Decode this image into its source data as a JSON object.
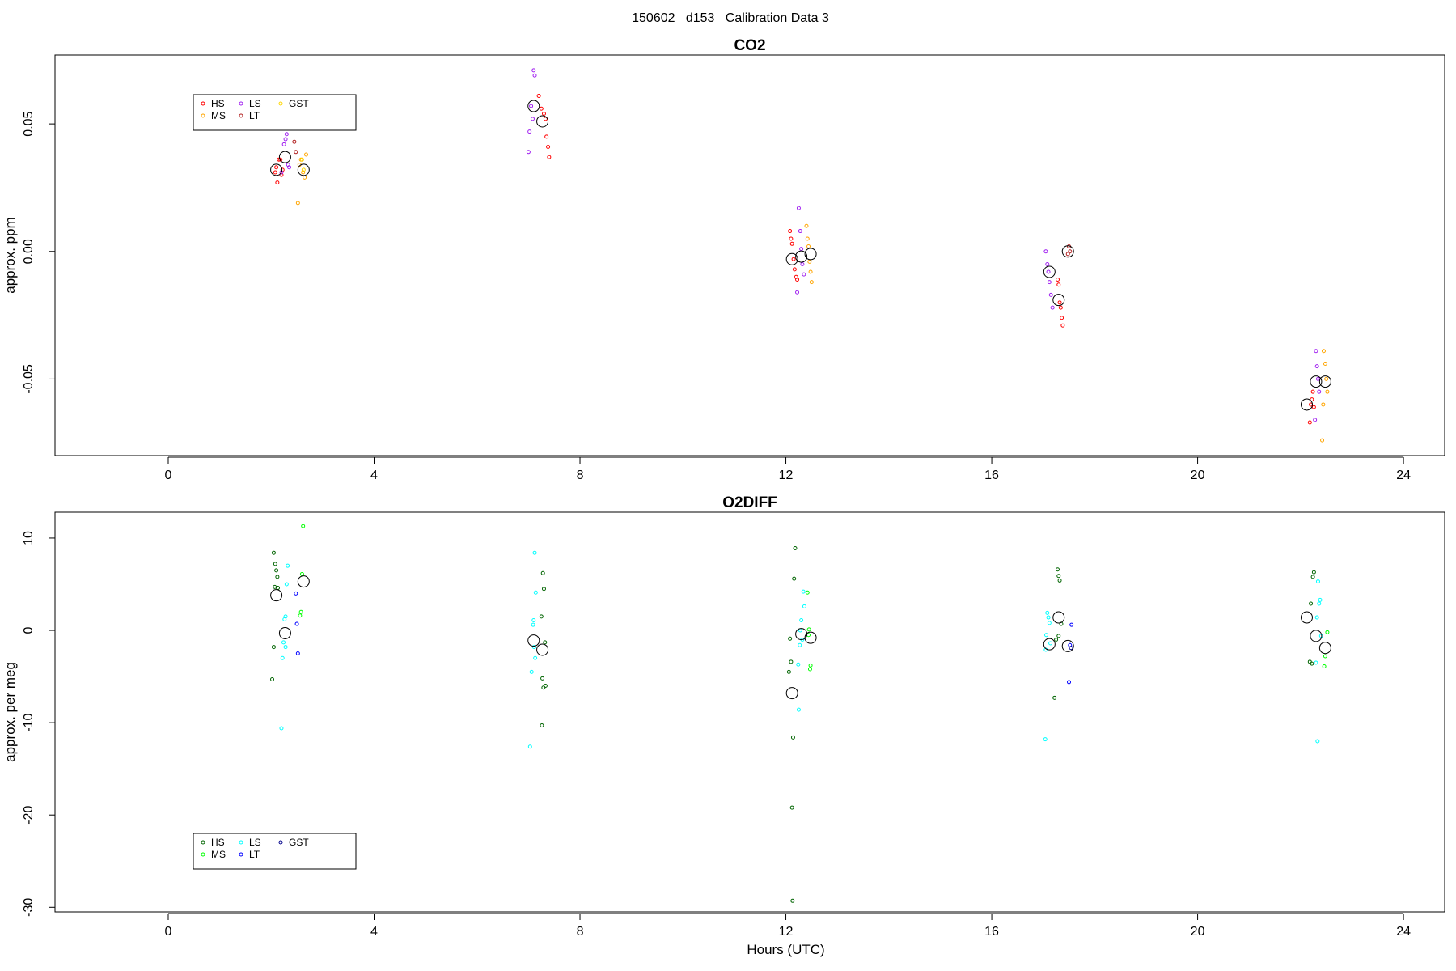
{
  "page_title": "150602   d153   Calibration Data 3",
  "chart_data": [
    {
      "type": "scatter",
      "title": "CO2",
      "xlabel": "",
      "ylabel": "approx. ppm",
      "xlim": [
        -2.2,
        24.8
      ],
      "ylim": [
        -0.08,
        0.077
      ],
      "xticks": [
        0,
        4,
        8,
        12,
        16,
        20,
        24
      ],
      "xtick_labels": [
        "0",
        "4",
        "8",
        "12",
        "16",
        "20",
        "24"
      ],
      "yticks": [
        -0.05,
        0.0,
        0.05
      ],
      "ytick_labels": [
        "-0.05",
        "0.00",
        "0.05"
      ],
      "grid": false,
      "legend": {
        "placement": "top-left",
        "entries": [
          {
            "label": "HS",
            "color": "#ff0000"
          },
          {
            "label": "MS",
            "color": "#ffa500"
          },
          {
            "label": "LS",
            "color": "#a020f0"
          },
          {
            "label": "LT",
            "color": "#b22222"
          },
          {
            "label": "GST",
            "color": "#ffd700"
          }
        ]
      },
      "series": [
        {
          "name": "HS",
          "color": "#ff0000",
          "points": [
            [
              2.08,
              0.031
            ],
            [
              2.1,
              0.033
            ],
            [
              2.12,
              0.027
            ],
            [
              2.15,
              0.036
            ],
            [
              2.18,
              0.036
            ],
            [
              2.2,
              0.03
            ],
            [
              2.22,
              0.032
            ],
            [
              7.2,
              0.061
            ],
            [
              7.25,
              0.056
            ],
            [
              7.3,
              0.054
            ],
            [
              7.33,
              0.052
            ],
            [
              7.35,
              0.045
            ],
            [
              7.38,
              0.041
            ],
            [
              7.4,
              0.037
            ],
            [
              12.08,
              0.008
            ],
            [
              12.1,
              0.005
            ],
            [
              12.12,
              0.003
            ],
            [
              12.15,
              -0.003
            ],
            [
              12.17,
              -0.007
            ],
            [
              12.2,
              -0.01
            ],
            [
              12.22,
              -0.011
            ],
            [
              17.28,
              -0.011
            ],
            [
              17.3,
              -0.013
            ],
            [
              17.32,
              -0.02
            ],
            [
              17.34,
              -0.022
            ],
            [
              17.36,
              -0.026
            ],
            [
              17.38,
              -0.029
            ],
            [
              22.18,
              -0.067
            ],
            [
              22.2,
              -0.06
            ],
            [
              22.22,
              -0.058
            ],
            [
              22.24,
              -0.055
            ],
            [
              22.26,
              -0.061
            ]
          ]
        },
        {
          "name": "MS",
          "color": "#ffa500",
          "points": [
            [
              2.55,
              0.034
            ],
            [
              2.58,
              0.036
            ],
            [
              2.62,
              0.031
            ],
            [
              2.65,
              0.029
            ],
            [
              2.68,
              0.038
            ],
            [
              2.52,
              0.019
            ],
            [
              12.4,
              0.01
            ],
            [
              12.42,
              0.005
            ],
            [
              12.44,
              0.002
            ],
            [
              12.46,
              -0.004
            ],
            [
              12.48,
              -0.008
            ],
            [
              12.5,
              -0.012
            ],
            [
              22.45,
              -0.039
            ],
            [
              22.48,
              -0.044
            ],
            [
              22.5,
              -0.05
            ],
            [
              22.52,
              -0.055
            ],
            [
              22.44,
              -0.06
            ],
            [
              22.42,
              -0.074
            ]
          ]
        },
        {
          "name": "LS",
          "color": "#a020f0",
          "points": [
            [
              2.25,
              0.042
            ],
            [
              2.28,
              0.044
            ],
            [
              2.3,
              0.046
            ],
            [
              2.33,
              0.034
            ],
            [
              2.35,
              0.033
            ],
            [
              2.2,
              0.031
            ],
            [
              7.1,
              0.071
            ],
            [
              7.12,
              0.069
            ],
            [
              7.05,
              0.057
            ],
            [
              7.08,
              0.052
            ],
            [
              7.02,
              0.047
            ],
            [
              7.0,
              0.039
            ],
            [
              12.25,
              0.017
            ],
            [
              12.28,
              0.008
            ],
            [
              12.3,
              0.001
            ],
            [
              12.32,
              -0.005
            ],
            [
              12.35,
              -0.009
            ],
            [
              12.22,
              -0.016
            ],
            [
              17.05,
              0.0
            ],
            [
              17.08,
              -0.005
            ],
            [
              17.1,
              -0.008
            ],
            [
              17.12,
              -0.012
            ],
            [
              17.15,
              -0.017
            ],
            [
              17.18,
              -0.022
            ],
            [
              22.3,
              -0.039
            ],
            [
              22.32,
              -0.045
            ],
            [
              22.34,
              -0.05
            ],
            [
              22.36,
              -0.055
            ],
            [
              22.28,
              -0.066
            ]
          ]
        },
        {
          "name": "LT",
          "color": "#b22222",
          "points": [
            [
              2.45,
              0.043
            ],
            [
              2.48,
              0.039
            ],
            [
              17.48,
              -0.001
            ],
            [
              17.52,
              0.0
            ],
            [
              17.5,
              0.002
            ]
          ]
        },
        {
          "name": "GST",
          "color": "#ffd700",
          "points": [
            [
              2.6,
              0.036
            ],
            [
              2.63,
              0.032
            ]
          ]
        }
      ],
      "means": [
        [
          2.1,
          0.032
        ],
        [
          2.27,
          0.037
        ],
        [
          2.63,
          0.032
        ],
        [
          7.1,
          0.057
        ],
        [
          7.27,
          0.051
        ],
        [
          12.12,
          -0.003
        ],
        [
          12.3,
          -0.002
        ],
        [
          12.48,
          -0.001
        ],
        [
          17.12,
          -0.008
        ],
        [
          17.3,
          -0.019
        ],
        [
          17.48,
          0.0
        ],
        [
          22.12,
          -0.06
        ],
        [
          22.3,
          -0.051
        ],
        [
          22.48,
          -0.051
        ]
      ]
    },
    {
      "type": "scatter",
      "title": "O2DIFF",
      "xlabel": "Hours (UTC)",
      "ylabel": "approx. per meg",
      "xlim": [
        -2.2,
        24.8
      ],
      "ylim": [
        -30.5,
        12.8
      ],
      "xticks": [
        0,
        4,
        8,
        12,
        16,
        20,
        24
      ],
      "xtick_labels": [
        "0",
        "4",
        "8",
        "12",
        "16",
        "20",
        "24"
      ],
      "yticks": [
        -30,
        -20,
        -10,
        0,
        10
      ],
      "ytick_labels": [
        "-30",
        "-20",
        "-10",
        "0",
        "10"
      ],
      "grid": false,
      "legend": {
        "placement": "bottom-left",
        "entries": [
          {
            "label": "HS",
            "color": "#006400"
          },
          {
            "label": "MS",
            "color": "#00ff00"
          },
          {
            "label": "LS",
            "color": "#00ffff"
          },
          {
            "label": "LT",
            "color": "#0000ff"
          },
          {
            "label": "GST",
            "color": "#00008b"
          }
        ]
      },
      "series": [
        {
          "name": "HS",
          "color": "#006400",
          "points": [
            [
              2.05,
              8.4
            ],
            [
              2.08,
              7.2
            ],
            [
              2.1,
              6.5
            ],
            [
              2.12,
              5.8
            ],
            [
              2.07,
              4.7
            ],
            [
              2.13,
              4.6
            ],
            [
              2.05,
              -1.8
            ],
            [
              2.02,
              -5.3
            ],
            [
              7.28,
              6.2
            ],
            [
              7.3,
              4.5
            ],
            [
              7.25,
              1.5
            ],
            [
              7.32,
              -1.3
            ],
            [
              7.27,
              -5.2
            ],
            [
              7.29,
              -6.2
            ],
            [
              7.33,
              -6.0
            ],
            [
              7.26,
              -10.3
            ],
            [
              12.18,
              8.9
            ],
            [
              12.16,
              5.6
            ],
            [
              12.08,
              -0.9
            ],
            [
              12.1,
              -3.4
            ],
            [
              12.06,
              -4.5
            ],
            [
              12.14,
              -11.6
            ],
            [
              12.12,
              -19.2
            ],
            [
              12.13,
              -29.3
            ],
            [
              17.28,
              6.6
            ],
            [
              17.3,
              5.9
            ],
            [
              17.32,
              5.4
            ],
            [
              17.35,
              0.7
            ],
            [
              17.3,
              -0.6
            ],
            [
              17.25,
              -1.0
            ],
            [
              17.22,
              -7.3
            ],
            [
              22.26,
              6.3
            ],
            [
              22.24,
              5.8
            ],
            [
              22.2,
              2.9
            ],
            [
              22.18,
              -3.4
            ],
            [
              22.22,
              -3.6
            ]
          ]
        },
        {
          "name": "MS",
          "color": "#00ff00",
          "points": [
            [
              2.62,
              11.3
            ],
            [
              2.6,
              6.1
            ],
            [
              2.58,
              2.0
            ],
            [
              2.56,
              1.6
            ],
            [
              12.42,
              4.1
            ],
            [
              12.45,
              0.1
            ],
            [
              12.44,
              -0.5
            ],
            [
              12.48,
              -3.8
            ],
            [
              12.47,
              -4.2
            ],
            [
              22.52,
              -0.2
            ],
            [
              22.48,
              -2.8
            ],
            [
              22.46,
              -3.9
            ]
          ]
        },
        {
          "name": "LS",
          "color": "#00ffff",
          "points": [
            [
              2.32,
              7.0
            ],
            [
              2.3,
              5.0
            ],
            [
              2.28,
              1.5
            ],
            [
              2.26,
              1.2
            ],
            [
              2.24,
              -1.3
            ],
            [
              2.28,
              -1.8
            ],
            [
              2.22,
              -3.0
            ],
            [
              2.2,
              -10.6
            ],
            [
              7.12,
              8.4
            ],
            [
              7.14,
              4.1
            ],
            [
              7.1,
              1.1
            ],
            [
              7.09,
              0.6
            ],
            [
              7.11,
              -1.8
            ],
            [
              7.13,
              -3.0
            ],
            [
              7.06,
              -4.5
            ],
            [
              7.03,
              -12.6
            ],
            [
              12.34,
              4.2
            ],
            [
              12.36,
              2.6
            ],
            [
              12.3,
              1.1
            ],
            [
              12.28,
              0.0
            ],
            [
              12.32,
              -1.0
            ],
            [
              12.27,
              -1.6
            ],
            [
              12.24,
              -3.7
            ],
            [
              12.25,
              -8.6
            ],
            [
              17.08,
              1.9
            ],
            [
              17.1,
              1.4
            ],
            [
              17.12,
              0.8
            ],
            [
              17.06,
              -0.5
            ],
            [
              17.14,
              -1.4
            ],
            [
              17.05,
              -2.1
            ],
            [
              17.04,
              -11.8
            ],
            [
              22.38,
              3.3
            ],
            [
              22.36,
              2.9
            ],
            [
              22.34,
              5.3
            ],
            [
              22.32,
              1.4
            ],
            [
              22.4,
              -0.6
            ],
            [
              22.3,
              -3.5
            ],
            [
              22.33,
              -12.0
            ]
          ]
        },
        {
          "name": "LT",
          "color": "#0000ff",
          "points": [
            [
              2.48,
              4.0
            ],
            [
              2.5,
              0.7
            ],
            [
              2.52,
              -2.5
            ],
            [
              17.55,
              0.6
            ],
            [
              17.52,
              -1.6
            ],
            [
              17.5,
              -5.6
            ]
          ]
        },
        {
          "name": "GST",
          "color": "#00008b",
          "points": [
            [
              17.54,
              -1.9
            ]
          ]
        }
      ],
      "means": [
        [
          2.1,
          3.8
        ],
        [
          2.27,
          -0.3
        ],
        [
          2.63,
          5.3
        ],
        [
          7.1,
          -1.1
        ],
        [
          7.27,
          -2.1
        ],
        [
          12.12,
          -6.8
        ],
        [
          12.3,
          -0.4
        ],
        [
          12.48,
          -0.8
        ],
        [
          17.12,
          -1.5
        ],
        [
          17.3,
          1.4
        ],
        [
          17.48,
          -1.7
        ],
        [
          22.12,
          1.4
        ],
        [
          22.3,
          -0.6
        ],
        [
          22.48,
          -1.9
        ]
      ]
    }
  ]
}
